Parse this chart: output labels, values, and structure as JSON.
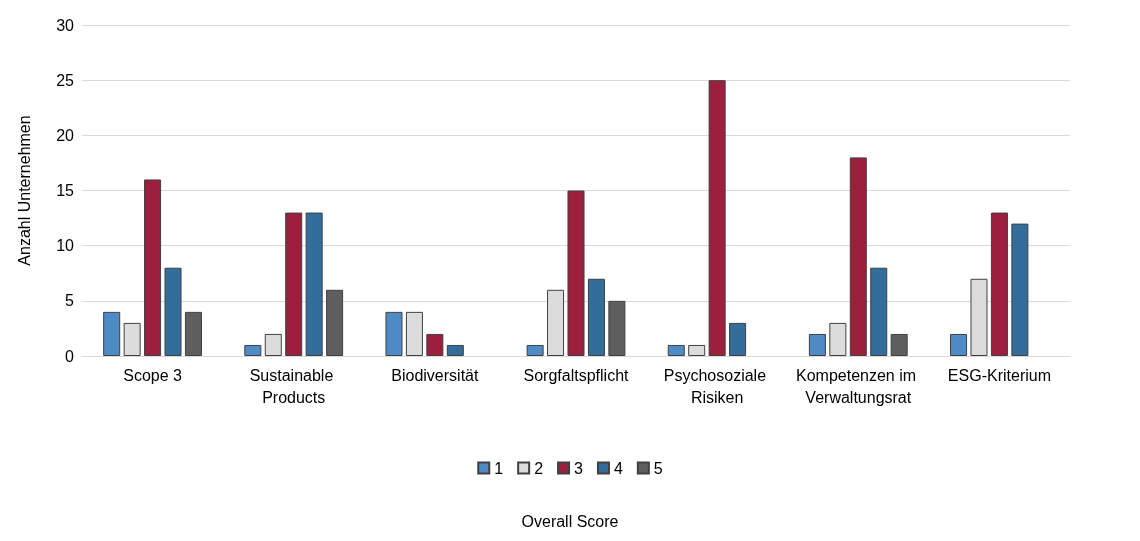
{
  "chart_data": {
    "type": "bar",
    "legend_title": "Overall Score",
    "ylabel": "Anzahl Unternehmen",
    "categories": [
      "Scope 3",
      "Sustainable Products",
      "Biodiversität",
      "Sorgfaltspflicht",
      "Psychosoziale Risiken",
      "Kompetenzen im Verwaltungsrat",
      "ESG-Kriterium"
    ],
    "series": [
      {
        "name": "1",
        "color": "#4e8ac4",
        "values": [
          4,
          1,
          4,
          1,
          1,
          2,
          2
        ]
      },
      {
        "name": "2",
        "color": "#dcdcdc",
        "values": [
          3,
          2,
          4,
          6,
          1,
          3,
          7
        ]
      },
      {
        "name": "3",
        "color": "#9c1f3e",
        "values": [
          16,
          13,
          2,
          15,
          25,
          18,
          13
        ]
      },
      {
        "name": "4",
        "color": "#336d9c",
        "values": [
          8,
          13,
          1,
          7,
          3,
          8,
          12
        ]
      },
      {
        "name": "5",
        "color": "#5e5e5e",
        "values": [
          4,
          6,
          0,
          5,
          0,
          2,
          0
        ]
      }
    ],
    "ylim": [
      0,
      30
    ],
    "yticks": [
      0,
      5,
      10,
      15,
      20,
      25,
      30
    ],
    "grid": "y",
    "legend": "bottom"
  }
}
